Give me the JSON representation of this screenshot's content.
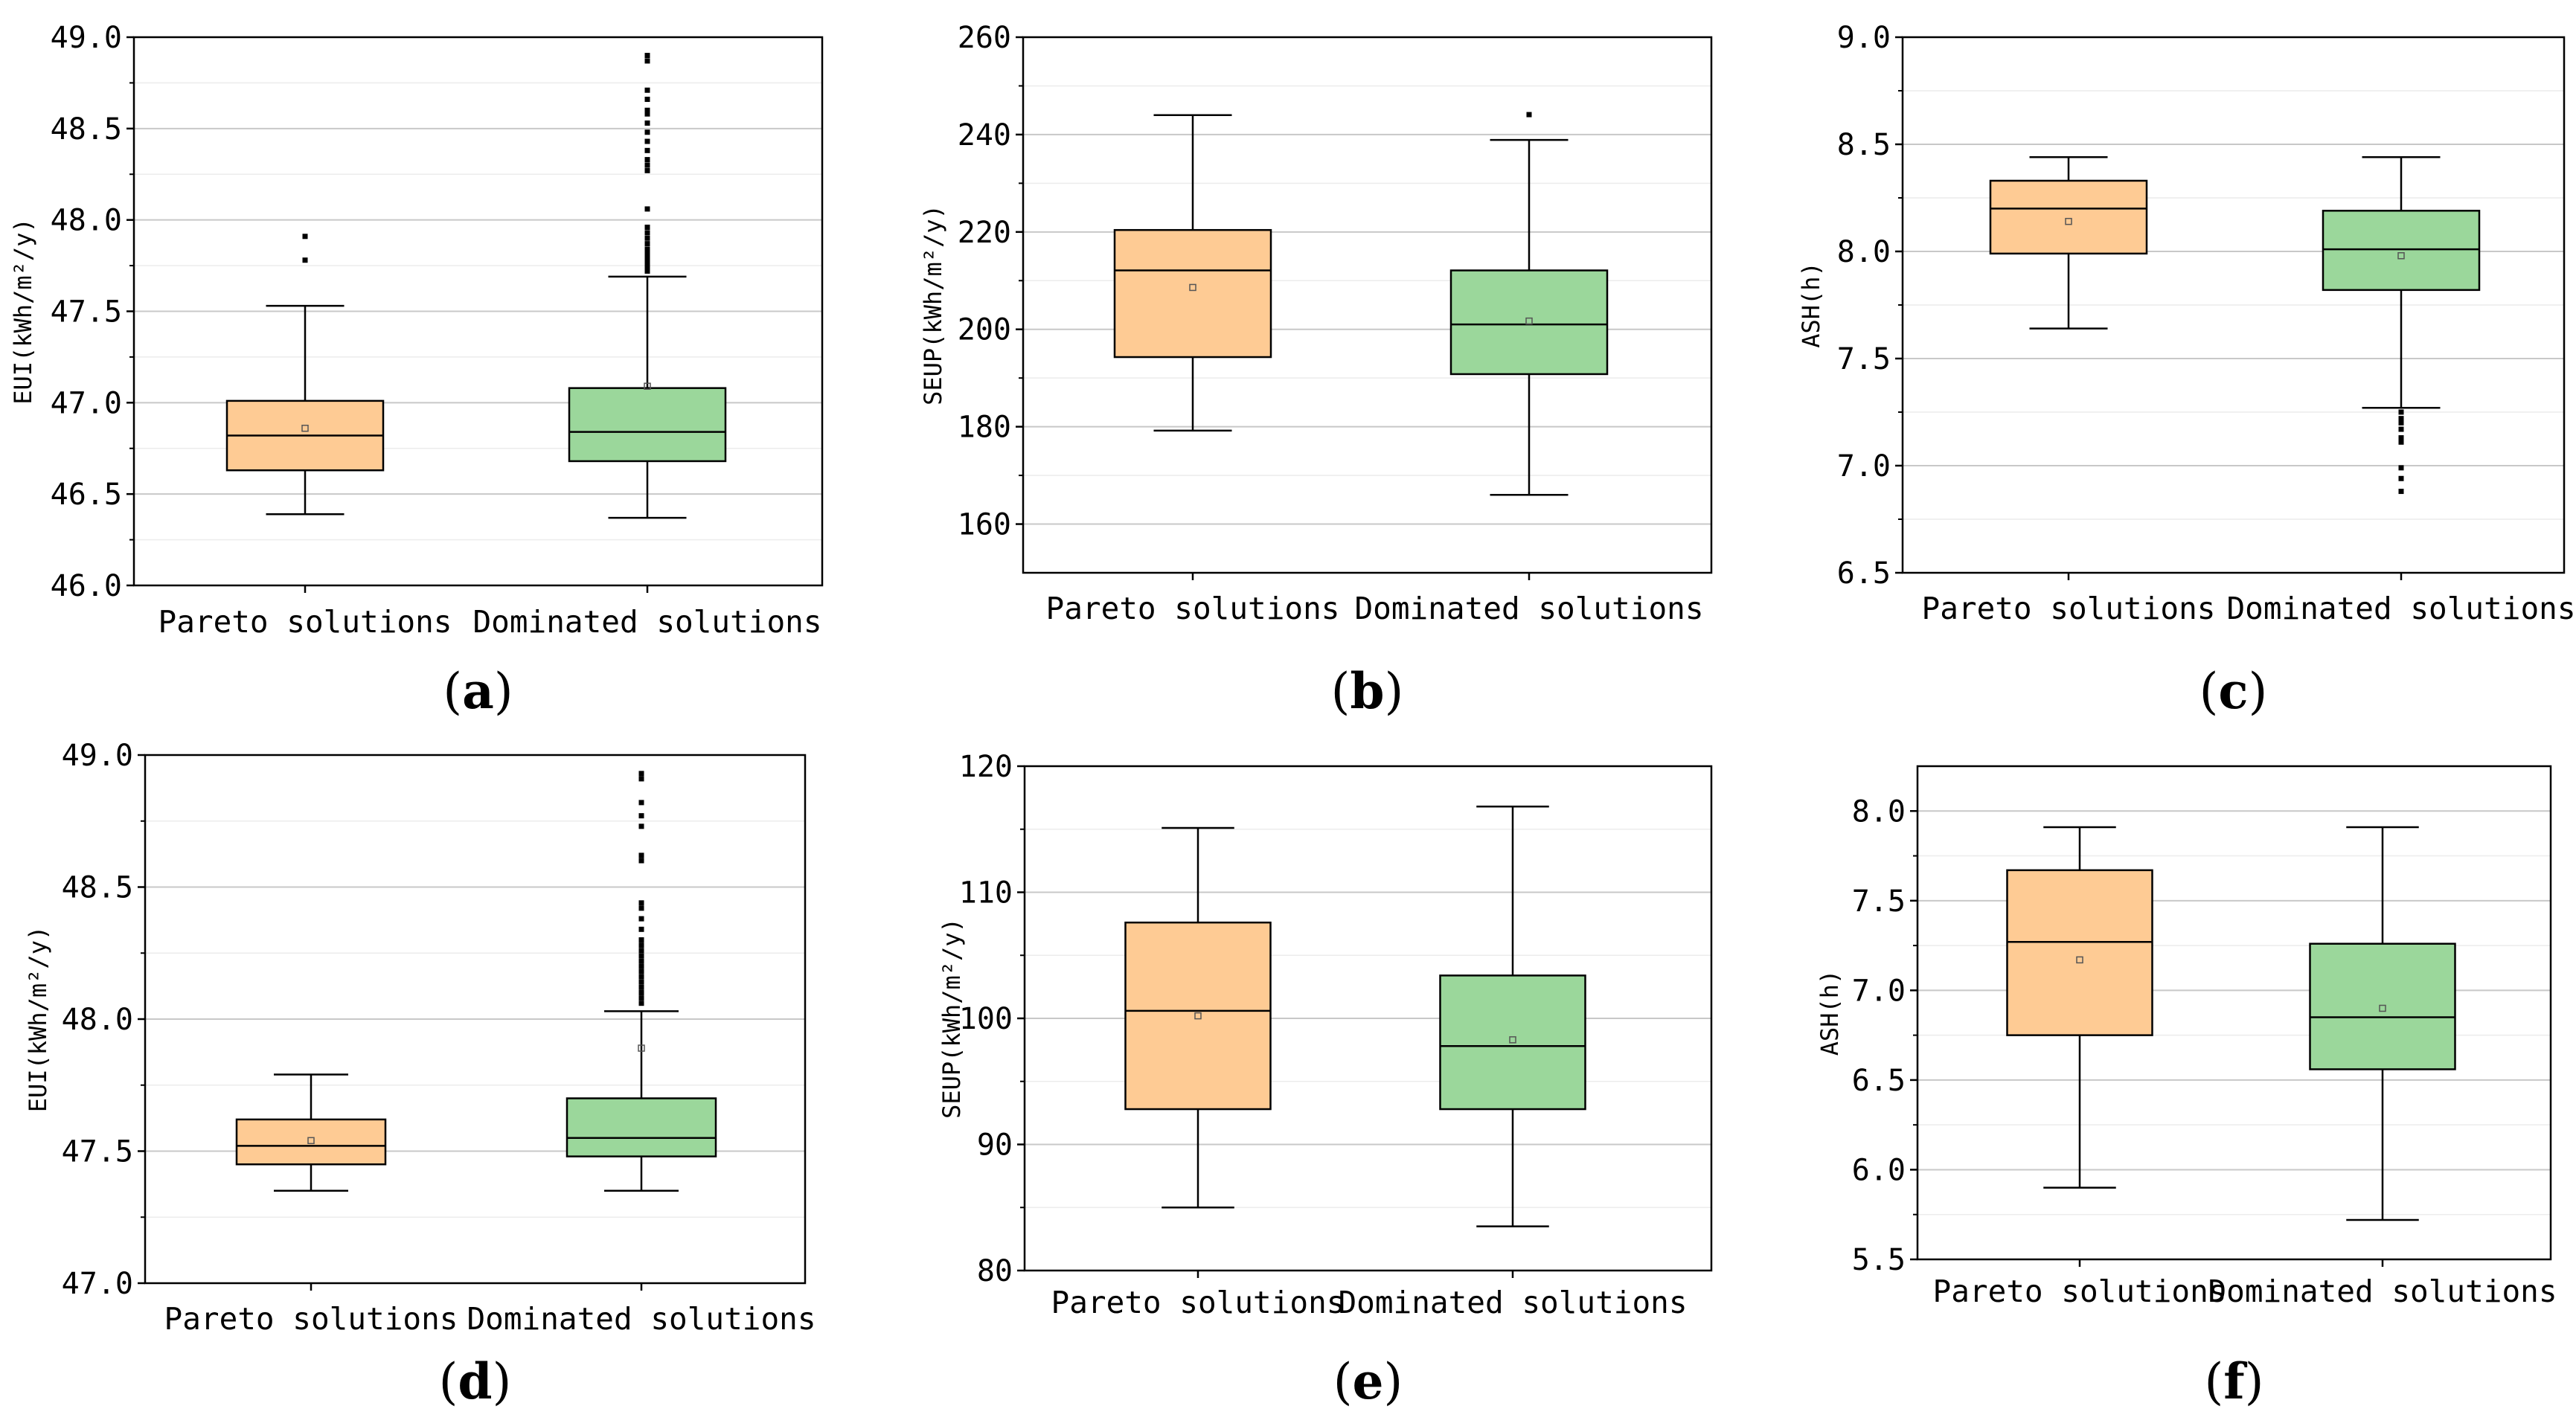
{
  "colors": {
    "pareto": "#fecb94",
    "dominated": "#9bd79b",
    "grid": "#c8c8c8",
    "axis": "#000000"
  },
  "chart_data": [
    {
      "id": "a",
      "panel_label": "a",
      "type": "box",
      "ylabel": "EUI(kWh/m²/y)",
      "ylim": [
        46.0,
        49.0
      ],
      "yticks": [
        46.0,
        46.5,
        47.0,
        47.5,
        48.0,
        48.5,
        49.0
      ],
      "ytick_labels": [
        "46.0",
        "46.5",
        "47.0",
        "47.5",
        "48.0",
        "48.5",
        "49.0"
      ],
      "categories": [
        "Pareto solutions",
        "Dominated solutions"
      ],
      "boxes": [
        {
          "name": "Pareto solutions",
          "whisker_low": 46.39,
          "q1": 46.63,
          "median": 46.82,
          "q3": 47.01,
          "whisker_high": 47.53,
          "mean": 46.86,
          "outliers": [
            47.78,
            47.91
          ]
        },
        {
          "name": "Dominated solutions",
          "whisker_low": 46.37,
          "q1": 46.68,
          "median": 46.84,
          "q3": 47.08,
          "whisker_high": 47.69,
          "mean": 47.09,
          "outliers": [
            47.72,
            47.74,
            47.76,
            47.78,
            47.8,
            47.82,
            47.84,
            47.87,
            47.9,
            47.93,
            47.96,
            48.06,
            48.27,
            48.3,
            48.33,
            48.38,
            48.43,
            48.48,
            48.53,
            48.58,
            48.6,
            48.66,
            48.71,
            48.87,
            48.9
          ]
        }
      ]
    },
    {
      "id": "b",
      "panel_label": "b",
      "type": "box",
      "ylabel": "SEUP(kWh/m²/y)",
      "ylim": [
        150,
        260
      ],
      "yticks": [
        160,
        180,
        200,
        220,
        240,
        260
      ],
      "ytick_labels": [
        "160",
        "180",
        "200",
        "220",
        "240",
        "260"
      ],
      "categories": [
        "Pareto solutions",
        "Dominated solutions"
      ],
      "boxes": [
        {
          "name": "Pareto solutions",
          "whisker_low": 179.2,
          "q1": 194.3,
          "median": 212.1,
          "q3": 220.4,
          "whisker_high": 244.0,
          "mean": 208.6,
          "outliers": []
        },
        {
          "name": "Dominated solutions",
          "whisker_low": 166.0,
          "q1": 190.8,
          "median": 201.0,
          "q3": 212.1,
          "whisker_high": 238.9,
          "mean": 201.7,
          "outliers": [
            244.1
          ]
        }
      ]
    },
    {
      "id": "c",
      "panel_label": "c",
      "type": "box",
      "ylabel": "ASH(h)",
      "ylim": [
        6.5,
        9.0
      ],
      "yticks": [
        6.5,
        7.0,
        7.5,
        8.0,
        8.5,
        9.0
      ],
      "ytick_labels": [
        "6.5",
        "7.0",
        "7.5",
        "8.0",
        "8.5",
        "9.0"
      ],
      "categories": [
        "Pareto solutions",
        "Dominated solutions"
      ],
      "boxes": [
        {
          "name": "Pareto solutions",
          "whisker_low": 7.64,
          "q1": 7.99,
          "median": 8.2,
          "q3": 8.33,
          "whisker_high": 8.44,
          "mean": 8.14,
          "outliers": []
        },
        {
          "name": "Dominated solutions",
          "whisker_low": 7.27,
          "q1": 7.82,
          "median": 8.01,
          "q3": 8.19,
          "whisker_high": 8.44,
          "mean": 7.98,
          "outliers": [
            7.25,
            7.22,
            7.2,
            7.17,
            7.13,
            7.11,
            6.99,
            6.94,
            6.88
          ]
        }
      ]
    },
    {
      "id": "d",
      "panel_label": "d",
      "type": "box",
      "ylabel": "EUI(kWh/m²/y)",
      "ylim": [
        47.0,
        49.0
      ],
      "yticks": [
        47.0,
        47.5,
        48.0,
        48.5,
        49.0
      ],
      "ytick_labels": [
        "47.0",
        "47.5",
        "48.0",
        "48.5",
        "49.0"
      ],
      "categories": [
        "Pareto solutions",
        "Dominated solutions"
      ],
      "boxes": [
        {
          "name": "Pareto solutions",
          "whisker_low": 47.35,
          "q1": 47.45,
          "median": 47.52,
          "q3": 47.62,
          "whisker_high": 47.79,
          "mean": 47.54,
          "outliers": []
        },
        {
          "name": "Dominated solutions",
          "whisker_low": 47.35,
          "q1": 47.48,
          "median": 47.55,
          "q3": 47.7,
          "whisker_high": 48.03,
          "mean": 47.89,
          "outliers": [
            48.06,
            48.08,
            48.1,
            48.12,
            48.14,
            48.16,
            48.18,
            48.2,
            48.22,
            48.24,
            48.26,
            48.28,
            48.3,
            48.34,
            48.38,
            48.42,
            48.44,
            48.6,
            48.62,
            48.73,
            48.77,
            48.82,
            48.91,
            48.93
          ]
        }
      ]
    },
    {
      "id": "e",
      "panel_label": "e",
      "type": "box",
      "ylabel": "SEUP(kWh/m²/y)",
      "ylim": [
        80,
        120
      ],
      "yticks": [
        80,
        90,
        100,
        110,
        120
      ],
      "ytick_labels": [
        "80",
        "90",
        "100",
        "110",
        "120"
      ],
      "categories": [
        "Pareto solutions",
        "Dominated solutions"
      ],
      "boxes": [
        {
          "name": "Pareto solutions",
          "whisker_low": 85.0,
          "q1": 92.8,
          "median": 100.6,
          "q3": 107.6,
          "whisker_high": 115.1,
          "mean": 100.2,
          "outliers": []
        },
        {
          "name": "Dominated solutions",
          "whisker_low": 83.5,
          "q1": 92.8,
          "median": 97.8,
          "q3": 103.4,
          "whisker_high": 116.8,
          "mean": 98.3,
          "outliers": []
        }
      ]
    },
    {
      "id": "f",
      "panel_label": "f",
      "type": "box",
      "ylabel": "ASH(h)",
      "ylim": [
        5.5,
        8.25
      ],
      "yticks": [
        5.5,
        6.0,
        6.5,
        7.0,
        7.5,
        8.0
      ],
      "ytick_labels": [
        "5.5",
        "6.0",
        "6.5",
        "7.0",
        "7.5",
        "8.0"
      ],
      "categories": [
        "Pareto solutions",
        "Dominated solutions"
      ],
      "boxes": [
        {
          "name": "Pareto solutions",
          "whisker_low": 5.9,
          "q1": 6.75,
          "median": 7.27,
          "q3": 7.67,
          "whisker_high": 7.91,
          "mean": 7.17,
          "outliers": []
        },
        {
          "name": "Dominated solutions",
          "whisker_low": 5.72,
          "q1": 6.56,
          "median": 6.85,
          "q3": 7.26,
          "whisker_high": 7.91,
          "mean": 6.9,
          "outliers": []
        }
      ]
    }
  ]
}
